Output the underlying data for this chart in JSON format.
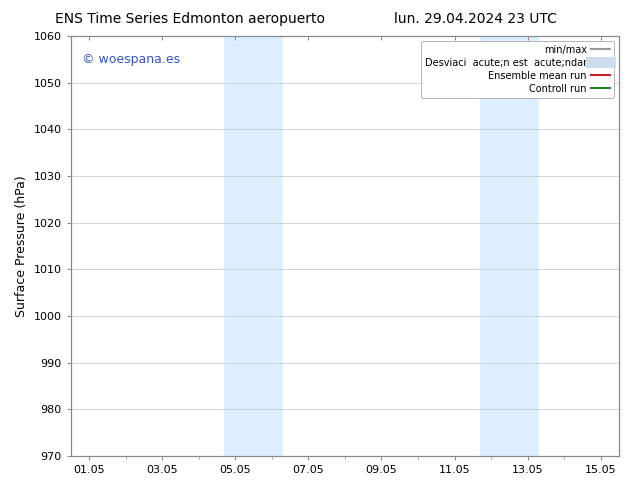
{
  "title_left": "ENS Time Series Edmonton aeropuerto",
  "title_right": "lun. 29.04.2024 23 UTC",
  "ylabel": "Surface Pressure (hPa)",
  "ylim": [
    970,
    1060
  ],
  "yticks": [
    970,
    980,
    990,
    1000,
    1010,
    1020,
    1030,
    1040,
    1050,
    1060
  ],
  "xtick_labels": [
    "01.05",
    "03.05",
    "05.05",
    "07.05",
    "09.05",
    "11.05",
    "13.05",
    "15.05"
  ],
  "xtick_positions": [
    0,
    2,
    4,
    6,
    8,
    10,
    12,
    14
  ],
  "xlim": [
    -0.5,
    14.5
  ],
  "watermark": "© woespana.es",
  "watermark_color": "#3355cc",
  "shaded_bands": [
    {
      "x_start": 3.7,
      "x_end": 5.3,
      "color": "#ddeeff"
    },
    {
      "x_start": 10.7,
      "x_end": 12.3,
      "color": "#ddeeff"
    }
  ],
  "legend_labels": [
    "min/max",
    "Desviaci  acute;n est  acute;ndar",
    "Ensemble mean run",
    "Controll run"
  ],
  "legend_colors": [
    "#999999",
    "#ccddee",
    "#cc2222",
    "#228822"
  ],
  "legend_lw": [
    1.5,
    8,
    1.5,
    1.5
  ],
  "bg_color": "#ffffff",
  "spine_color": "#888888",
  "tick_color": "#888888",
  "title_fontsize": 10,
  "tick_fontsize": 8,
  "ylabel_fontsize": 9,
  "watermark_fontsize": 9
}
